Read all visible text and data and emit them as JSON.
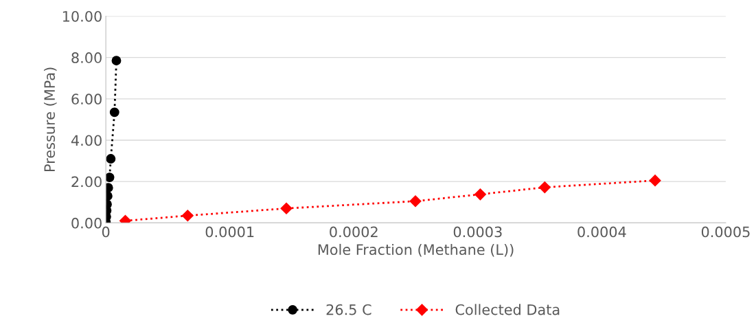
{
  "chart_data": {
    "type": "line",
    "xlabel": "Mole Fraction (Methane (L))",
    "ylabel": "Pressure (MPa)",
    "xlim": [
      0,
      0.0005
    ],
    "xticks": [
      0,
      0.0001,
      0.0002,
      0.0003,
      0.0004,
      0.0005
    ],
    "ylim": [
      0,
      10
    ],
    "yticks": [
      {
        "value": 0,
        "label": "0.00"
      },
      {
        "value": 2,
        "label": "2.00"
      },
      {
        "value": 4,
        "label": "4.00"
      },
      {
        "value": 6,
        "label": "6.00"
      },
      {
        "value": 8,
        "label": "8.00"
      },
      {
        "value": 10,
        "label": "10.00"
      }
    ],
    "grid": "y",
    "legend": "bottom",
    "line_style": "dotted",
    "series": [
      {
        "name": "26.5 C",
        "color": "#000000",
        "marker": "circle",
        "x": [
          1e-07,
          4e-07,
          7e-07,
          1e-06,
          1.5e-06,
          2e-06,
          3e-06,
          4e-06,
          7e-06,
          8.5e-06
        ],
        "values": [
          0.05,
          0.3,
          0.6,
          0.9,
          1.3,
          1.7,
          2.2,
          3.1,
          5.35,
          7.85
        ]
      },
      {
        "name": "Collected Data",
        "color": "#ff0000",
        "marker": "diamond",
        "x": [
          1.57e-05,
          6.6e-05,
          0.0001456,
          0.0002497,
          0.000302,
          0.000354,
          0.000443
        ],
        "values": [
          0.1,
          0.35,
          0.7,
          1.05,
          1.38,
          1.72,
          2.05
        ]
      }
    ]
  }
}
